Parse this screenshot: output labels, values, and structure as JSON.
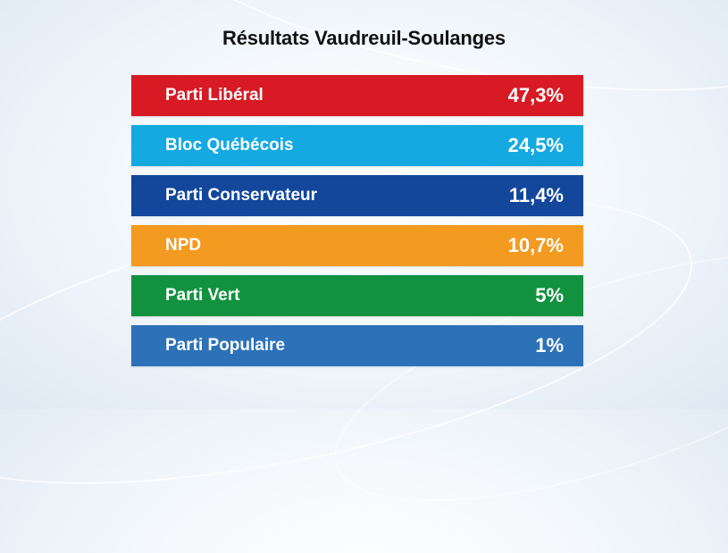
{
  "chart_data": {
    "type": "table",
    "title": "Résultats Vaudreuil-Soulanges",
    "rows": [
      {
        "party": "Parti Libéral",
        "value": "47,3%",
        "color": "#d71a24"
      },
      {
        "party": "Bloc Québécois",
        "value": "24,5%",
        "color": "#14a9e1"
      },
      {
        "party": "Parti Conservateur",
        "value": "11,4%",
        "color": "#13479c"
      },
      {
        "party": "NPD",
        "value": "10,7%",
        "color": "#f39a21"
      },
      {
        "party": "Parti Vert",
        "value": "5%",
        "color": "#12923f"
      },
      {
        "party": "Parti Populaire",
        "value": "1%",
        "color": "#2d72b8"
      }
    ]
  }
}
